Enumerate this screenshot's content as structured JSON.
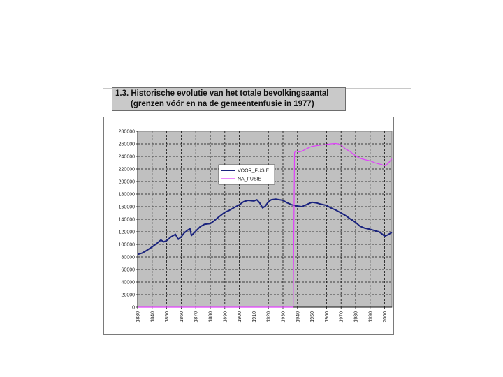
{
  "title": {
    "line1": "1.3. Historische evolutie van het totale bevolkingsaantal",
    "line2": "(grenzen vóór en na de gemeentenfusie in 1977)"
  },
  "chart_data": {
    "type": "line",
    "title": "",
    "xlabel": "",
    "ylabel": "",
    "xlim": [
      1830,
      2005
    ],
    "ylim": [
      0,
      280000
    ],
    "grid": true,
    "legend_position": "top-left inside plot",
    "y_ticks": [
      0,
      20000,
      40000,
      60000,
      80000,
      100000,
      120000,
      140000,
      160000,
      180000,
      200000,
      220000,
      240000,
      260000,
      280000
    ],
    "y_tick_labels": [
      "0",
      "20000",
      "40000",
      "60000",
      "80000",
      "100000",
      "120000",
      "140000",
      "160000",
      "180000",
      "200000",
      "220000",
      "240000",
      "260000",
      "280000"
    ],
    "x_ticks": [
      1830,
      1840,
      1850,
      1860,
      1870,
      1880,
      1890,
      1900,
      1910,
      1920,
      1930,
      1940,
      1950,
      1960,
      1970,
      1980,
      1990,
      2000
    ],
    "x_tick_labels": [
      "1830",
      "1840",
      "1850",
      "1860",
      "1870",
      "1880",
      "1890",
      "1900",
      "1910",
      "1920",
      "1930",
      "1940",
      "1950",
      "1960",
      "1970",
      "1980",
      "1990",
      "2000"
    ],
    "series": [
      {
        "name": "VOOR_FUSIE",
        "color": "#1a237e",
        "x": [
          1830,
          1833,
          1836,
          1840,
          1843,
          1846,
          1848,
          1850,
          1853,
          1856,
          1858,
          1860,
          1862,
          1864,
          1866,
          1867,
          1870,
          1873,
          1876,
          1880,
          1883,
          1886,
          1890,
          1893,
          1896,
          1900,
          1903,
          1906,
          1910,
          1912,
          1914,
          1916,
          1918,
          1920,
          1922,
          1925,
          1930,
          1933,
          1936,
          1940,
          1943,
          1946,
          1950,
          1953,
          1956,
          1960,
          1963,
          1966,
          1970,
          1973,
          1976,
          1980,
          1983,
          1986,
          1990,
          1993,
          1996,
          1998,
          2000,
          2002,
          2005
        ],
        "y": [
          84000,
          86000,
          90000,
          96000,
          101000,
          107000,
          104000,
          106000,
          112000,
          116000,
          108000,
          112000,
          118000,
          122000,
          125000,
          114000,
          121000,
          128000,
          132000,
          133000,
          138000,
          144000,
          151000,
          154000,
          158000,
          163000,
          168000,
          170000,
          169000,
          171000,
          166000,
          158000,
          161000,
          168000,
          171000,
          172000,
          170000,
          166000,
          163000,
          161000,
          160000,
          163000,
          167000,
          166000,
          164000,
          162000,
          158000,
          155000,
          150000,
          146000,
          141000,
          135000,
          129000,
          126000,
          124000,
          122000,
          120000,
          117000,
          113000,
          115000,
          119000
        ]
      },
      {
        "name": "NA_FUSIE",
        "color": "#e040fb",
        "x": [
          1830,
          1935,
          1937,
          1938,
          1939,
          1941,
          1943,
          1946,
          1950,
          1953,
          1956,
          1960,
          1963,
          1966,
          1968,
          1970,
          1973,
          1976,
          1980,
          1983,
          1986,
          1990,
          1993,
          1996,
          1998,
          2000,
          2002,
          2005
        ],
        "y": [
          0,
          0,
          0,
          246000,
          249000,
          247000,
          248000,
          252000,
          256000,
          257000,
          258000,
          259000,
          260000,
          260500,
          260000,
          258000,
          252000,
          248000,
          241000,
          237000,
          235000,
          233000,
          230000,
          228000,
          227000,
          225000,
          228000,
          236000
        ]
      }
    ]
  }
}
